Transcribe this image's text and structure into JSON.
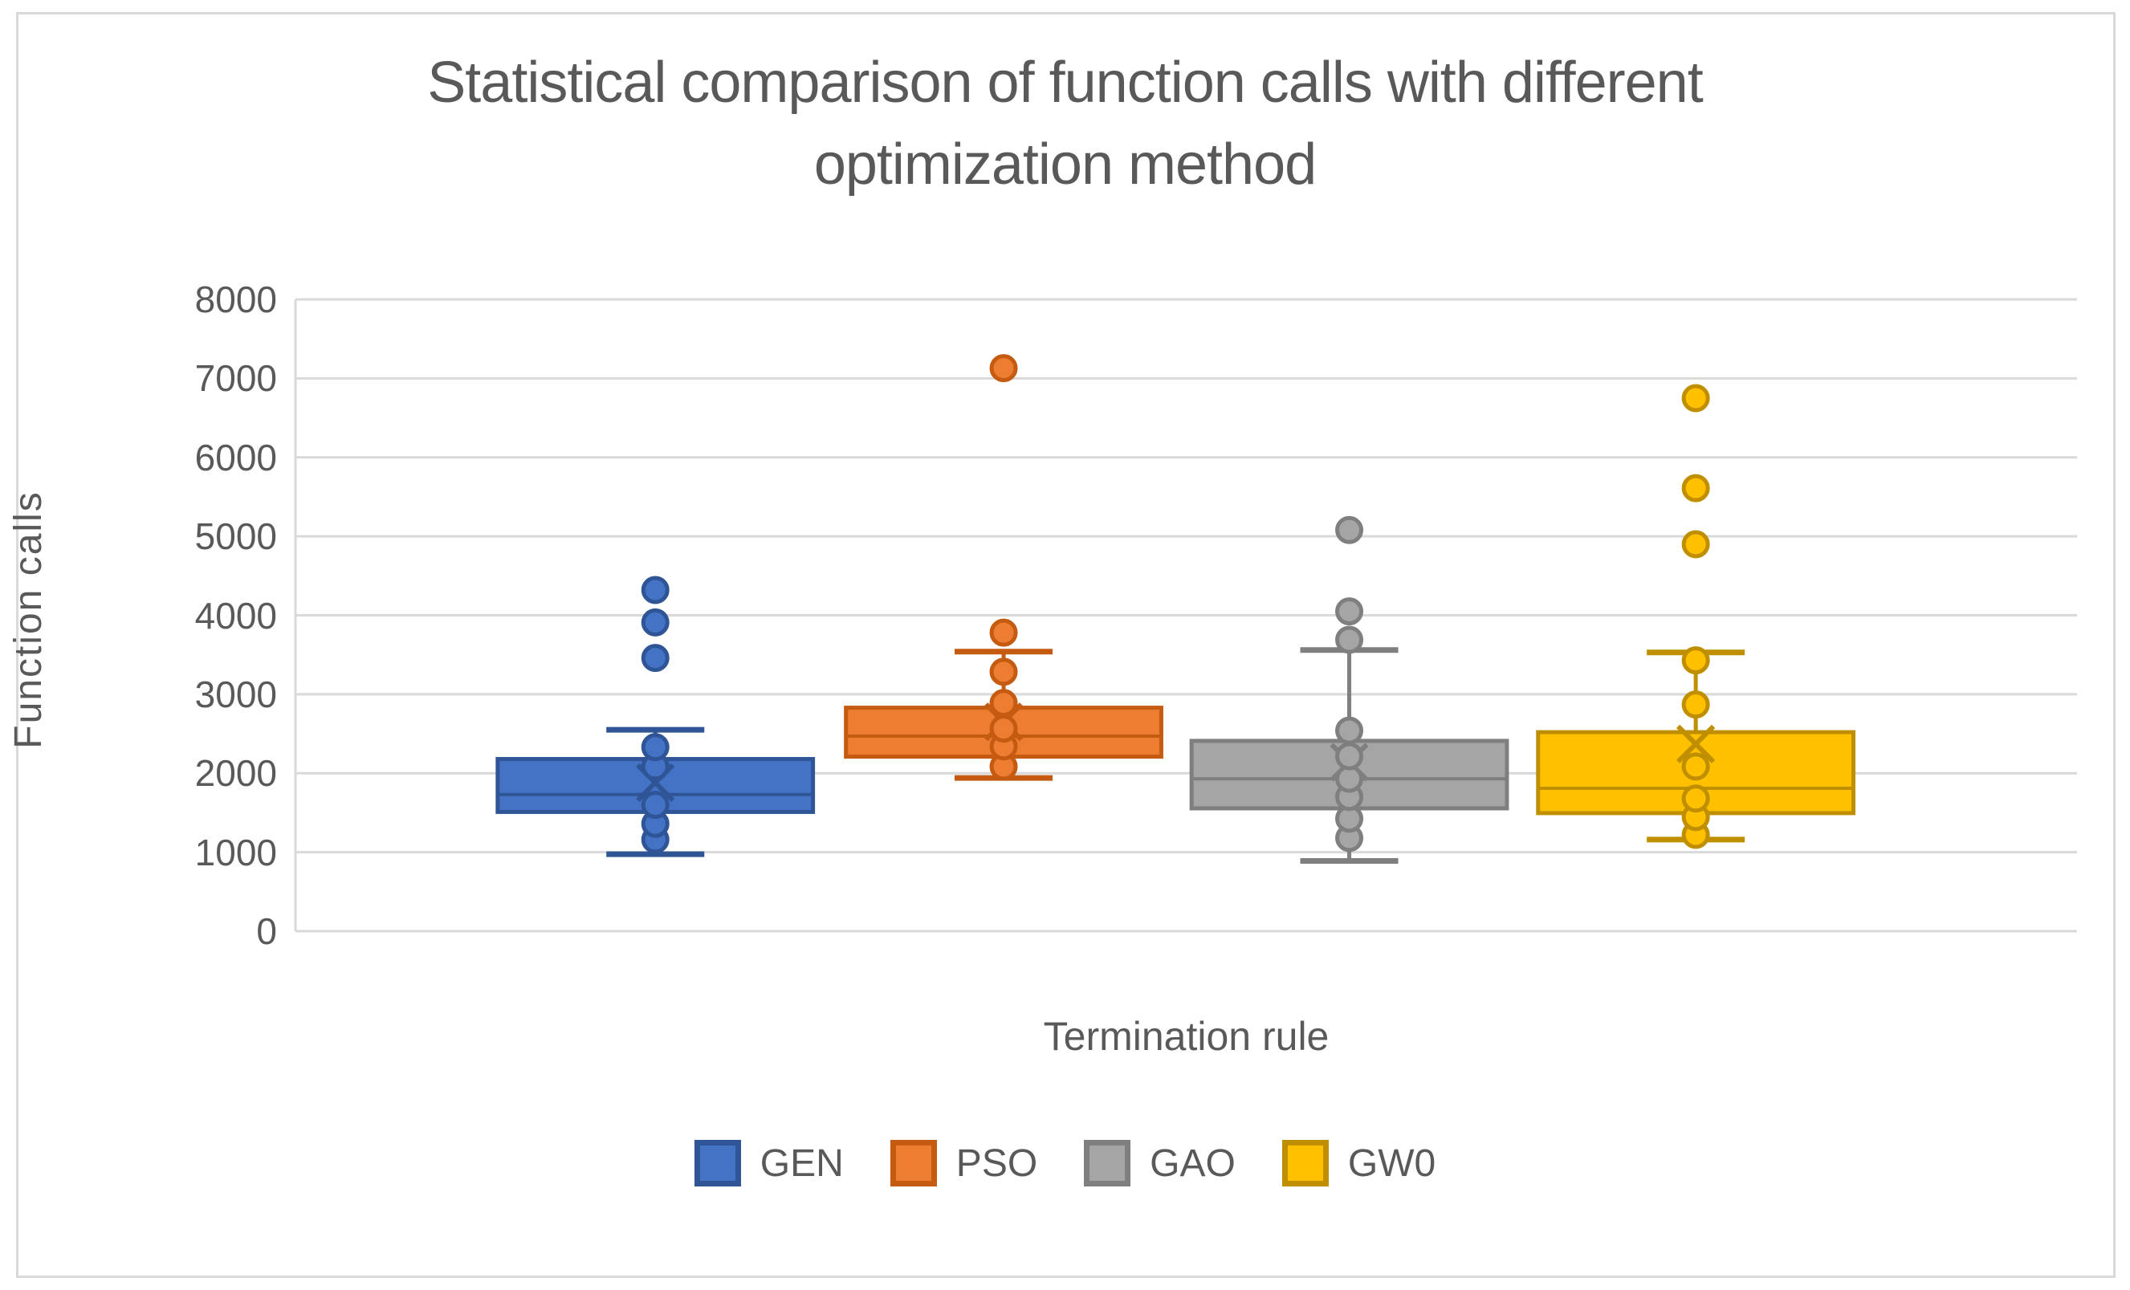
{
  "title": {
    "line1": "Statistical comparison of function calls with different",
    "line2": "optimization method"
  },
  "y_axis": {
    "label": "Function calls",
    "ticks": [
      8000,
      7000,
      6000,
      5000,
      4000,
      3000,
      2000,
      1000,
      0
    ]
  },
  "x_axis": {
    "label": "Termination rule"
  },
  "legend": [
    {
      "label": "GEN",
      "color": "#4472C4",
      "border": "#2F5597"
    },
    {
      "label": "PSO",
      "color": "#ED7D31",
      "border": "#C55A11"
    },
    {
      "label": "GAO",
      "color": "#A5A5A5",
      "border": "#7F7F7F"
    },
    {
      "label": "GW0",
      "color": "#FFC000",
      "border": "#BF8F00"
    }
  ],
  "colors": {
    "text": "#595959",
    "gridline": "#D9D9D9",
    "frame": "#D9D9D9",
    "background": "#FFFFFF"
  },
  "chart_data": {
    "type": "boxplot",
    "title": "Statistical comparison of function calls with different optimization method",
    "xlabel": "Termination rule",
    "ylabel": "Function calls",
    "ylim": [
      0,
      8000
    ],
    "ytick_step": 1000,
    "grid": true,
    "legend_position": "bottom",
    "box_width_frac": 0.177,
    "cap_width_frac": 0.055,
    "series": [
      {
        "name": "GEN",
        "color": "#4472C4",
        "border": "#2F5597",
        "center_frac": 0.202,
        "q1": 1510,
        "median": 1730,
        "q3": 2180,
        "mean": 1880,
        "whisker_low": 975,
        "whisker_high": 2550,
        "points": [
          1160,
          1360,
          1600,
          2085,
          2330
        ],
        "outliers": [
          3460,
          3910,
          4320
        ]
      },
      {
        "name": "PSO",
        "color": "#ED7D31",
        "border": "#C55A11",
        "center_frac": 0.3975,
        "q1": 2210,
        "median": 2470,
        "q3": 2830,
        "mean": 2650,
        "whisker_low": 1940,
        "whisker_high": 3540,
        "points": [
          2085,
          2340,
          2565,
          2890,
          3285,
          3780
        ],
        "outliers": [
          7130
        ]
      },
      {
        "name": "GAO",
        "color": "#A5A5A5",
        "border": "#7F7F7F",
        "center_frac": 0.5915,
        "q1": 1555,
        "median": 1930,
        "q3": 2410,
        "mean": 2140,
        "whisker_low": 890,
        "whisker_high": 3560,
        "points": [
          1180,
          1425,
          1700,
          1930,
          2215,
          2540,
          3690
        ],
        "outliers": [
          4050,
          5080
        ]
      },
      {
        "name": "GW0",
        "color": "#FFC000",
        "border": "#BF8F00",
        "center_frac": 0.786,
        "q1": 1495,
        "median": 1810,
        "q3": 2520,
        "mean": 2370,
        "whisker_low": 1160,
        "whisker_high": 3530,
        "points": [
          1220,
          1445,
          1680,
          2085,
          2870,
          3430
        ],
        "outliers": [
          4900,
          5610,
          6750
        ]
      }
    ]
  }
}
